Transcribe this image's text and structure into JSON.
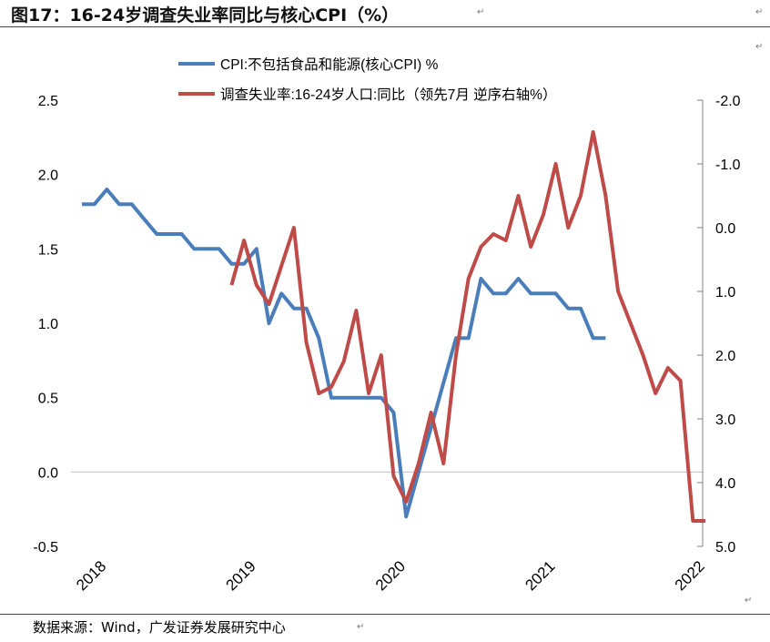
{
  "header": {
    "title": "图17：16-24岁调查失业率同比与核心CPI（%）"
  },
  "footer": {
    "source": "数据来源：Wind，广发证券发展研究中心"
  },
  "colors": {
    "cpi": "#4A7EBB",
    "unemployment": "#BE4B48",
    "axis": "#808080",
    "zero_line": "#C0C0C0"
  },
  "chart_data": {
    "type": "line",
    "title": "",
    "xlabel": "",
    "ylabel": "",
    "x_axis": {
      "range": [
        "2018-01",
        "2022-02"
      ],
      "ticks": [
        "2018",
        "2019",
        "2020",
        "2021",
        "2022"
      ]
    },
    "y_left": {
      "range": [
        -0.5,
        2.5
      ],
      "ticks": [
        "2.5",
        "2.0",
        "1.5",
        "1.0",
        "0.5",
        "0.0",
        "-0.5"
      ]
    },
    "y_right": {
      "range": [
        -2.0,
        5.0
      ],
      "inverted": true,
      "ticks": [
        "-2.0",
        "-1.0",
        "0.0",
        "1.0",
        "2.0",
        "3.0",
        "4.0",
        "5.0"
      ]
    },
    "grid": false,
    "legend_position": "top-center",
    "series": [
      {
        "name": "CPI:不包括食品和能源(核心CPI) %",
        "axis": "left",
        "start": "2018-01",
        "values": [
          1.8,
          1.8,
          1.9,
          1.8,
          1.8,
          1.7,
          1.6,
          1.6,
          1.6,
          1.5,
          1.5,
          1.5,
          1.4,
          1.4,
          1.5,
          1.0,
          1.2,
          1.1,
          1.1,
          0.9,
          0.5,
          0.5,
          0.5,
          0.5,
          0.5,
          0.4,
          -0.3,
          0.0,
          0.3,
          0.6,
          0.9,
          0.9,
          1.3,
          1.2,
          1.2,
          1.3,
          1.2,
          1.2,
          1.2,
          1.1,
          1.1,
          0.9,
          0.9
        ]
      },
      {
        "name": "调查失业率:16-24岁人口:同比（领先7月 逆序右轴%）",
        "axis": "right",
        "start": "2019-01",
        "values": [
          0.9,
          0.2,
          0.9,
          1.2,
          0.6,
          0.0,
          1.8,
          2.6,
          2.5,
          2.1,
          1.3,
          2.6,
          2.0,
          3.9,
          4.3,
          3.7,
          2.9,
          3.7,
          2.0,
          0.8,
          0.3,
          0.1,
          0.2,
          -0.5,
          0.3,
          -0.2,
          -1.0,
          0.0,
          -0.5,
          -1.5,
          -0.5,
          1.0,
          1.5,
          2.0,
          2.6,
          2.2,
          2.4,
          4.6,
          4.6
        ]
      }
    ]
  }
}
